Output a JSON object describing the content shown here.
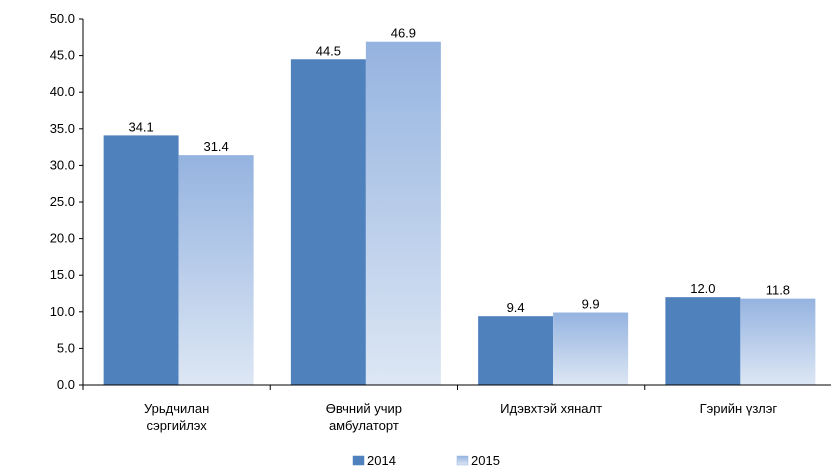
{
  "chart_data": {
    "type": "bar",
    "categories": [
      [
        "Урьдчилан",
        "сэргийлэх"
      ],
      [
        "Өвчний учир",
        "амбулаторт"
      ],
      [
        "Идэвхтэй хяналт"
      ],
      [
        "Гэрийн үзлэг"
      ]
    ],
    "series": [
      {
        "name": "2014",
        "values": [
          34.1,
          44.5,
          9.4,
          12.0
        ],
        "labels": [
          "34.1",
          "44.5",
          "9.4",
          "12.0"
        ],
        "color": "#4f81bd"
      },
      {
        "name": "2015",
        "values": [
          31.4,
          46.9,
          9.9,
          11.8
        ],
        "labels": [
          "31.4",
          "46.9",
          "9.9",
          "11.8"
        ],
        "color_top": "#95b3e0",
        "color_bottom": "#dde7f4"
      }
    ],
    "ylim": [
      0,
      50
    ],
    "yticks": [
      "0.0",
      "5.0",
      "10.0",
      "15.0",
      "20.0",
      "25.0",
      "30.0",
      "35.0",
      "40.0",
      "45.0",
      "50.0"
    ],
    "grid": false,
    "legend": "bottom-center"
  }
}
